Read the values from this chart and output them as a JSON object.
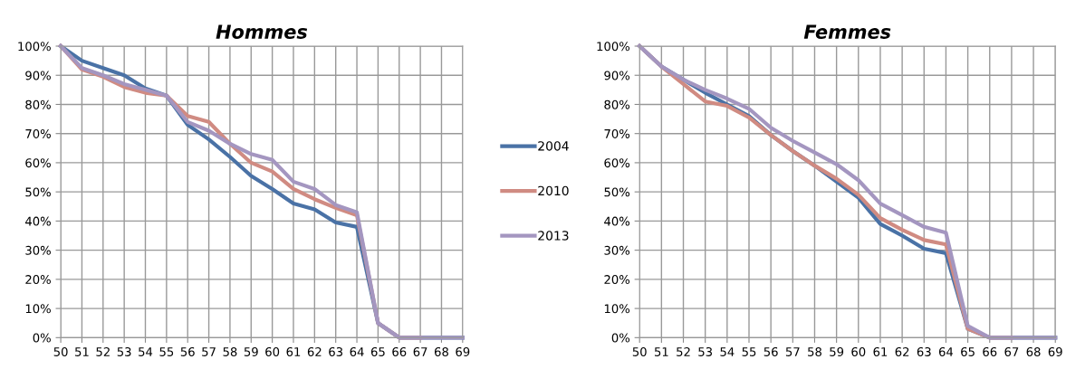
{
  "chart_data": [
    {
      "type": "line",
      "title": "Hommes",
      "x": [
        50,
        51,
        52,
        53,
        54,
        55,
        56,
        57,
        58,
        59,
        60,
        61,
        62,
        63,
        64,
        65,
        66,
        67,
        68,
        69
      ],
      "xlim": [
        50,
        69
      ],
      "xticks": [
        50,
        51,
        52,
        53,
        54,
        55,
        56,
        57,
        58,
        59,
        60,
        61,
        62,
        63,
        64,
        65,
        66,
        67,
        68,
        69
      ],
      "ylim": [
        0,
        100
      ],
      "yticks": [
        {
          "value": 0,
          "label": "0%"
        },
        {
          "value": 10,
          "label": "10%"
        },
        {
          "value": 20,
          "label": "20%"
        },
        {
          "value": 30,
          "label": "30%"
        },
        {
          "value": 40,
          "label": "40%"
        },
        {
          "value": 50,
          "label": "50%"
        },
        {
          "value": 60,
          "label": "60%"
        },
        {
          "value": 70,
          "label": "70%"
        },
        {
          "value": 80,
          "label": "80%"
        },
        {
          "value": 90,
          "label": "90%"
        },
        {
          "value": 100,
          "label": "100%"
        }
      ],
      "grid": true,
      "legend": "right",
      "marker": "none",
      "line_style": "solid",
      "series": [
        {
          "name": "2004",
          "color": "#4a72a6",
          "values": [
            100,
            95,
            92.5,
            90,
            85.5,
            83,
            73,
            68,
            62,
            55.5,
            51,
            46,
            44,
            39.5,
            38,
            5,
            0,
            0,
            0,
            0
          ]
        },
        {
          "name": "2010",
          "color": "#d08b82",
          "values": [
            100,
            92,
            89.5,
            86,
            84,
            83,
            76,
            74,
            66.5,
            60,
            57,
            51,
            47.5,
            44.5,
            42,
            5,
            0,
            0,
            null,
            null
          ]
        },
        {
          "name": "2013",
          "color": "#a496c0",
          "values": [
            100,
            92.5,
            90,
            87,
            85,
            83,
            74,
            71,
            66.5,
            63,
            61,
            53.5,
            51,
            45.5,
            43,
            5,
            0,
            0,
            0,
            0
          ]
        }
      ]
    },
    {
      "type": "line",
      "title": "Femmes",
      "x": [
        50,
        51,
        52,
        53,
        54,
        55,
        56,
        57,
        58,
        59,
        60,
        61,
        62,
        63,
        64,
        65,
        66,
        67,
        68,
        69
      ],
      "xlim": [
        50,
        69
      ],
      "xticks": [
        50,
        51,
        52,
        53,
        54,
        55,
        56,
        57,
        58,
        59,
        60,
        61,
        62,
        63,
        64,
        65,
        66,
        67,
        68,
        69
      ],
      "ylim": [
        0,
        100
      ],
      "yticks": [
        {
          "value": 0,
          "label": "0%"
        },
        {
          "value": 10,
          "label": "10%"
        },
        {
          "value": 20,
          "label": "20%"
        },
        {
          "value": 30,
          "label": "30%"
        },
        {
          "value": 40,
          "label": "40%"
        },
        {
          "value": 50,
          "label": "50%"
        },
        {
          "value": 60,
          "label": "60%"
        },
        {
          "value": 70,
          "label": "70%"
        },
        {
          "value": 80,
          "label": "80%"
        },
        {
          "value": 90,
          "label": "90%"
        },
        {
          "value": 100,
          "label": "100%"
        }
      ],
      "grid": true,
      "marker": "none",
      "line_style": "solid",
      "series": [
        {
          "color": "#4a72a6",
          "values": [
            100,
            93,
            88.5,
            84,
            80,
            76,
            69.5,
            64,
            59,
            53.5,
            48,
            39,
            35,
            30.5,
            29,
            3,
            0,
            0,
            0,
            0
          ]
        },
        {
          "color": "#d08b82",
          "values": [
            100,
            93,
            87,
            81,
            79.5,
            75.5,
            69.5,
            64,
            59,
            54.5,
            49,
            41,
            37,
            33.5,
            32,
            3,
            0,
            0,
            null,
            null
          ]
        },
        {
          "color": "#a496c0",
          "values": [
            100,
            93,
            88.5,
            85,
            82,
            78.5,
            72,
            67.5,
            63.5,
            59.5,
            54,
            46,
            42,
            38,
            36,
            4,
            0,
            0,
            0,
            0
          ]
        }
      ]
    }
  ]
}
